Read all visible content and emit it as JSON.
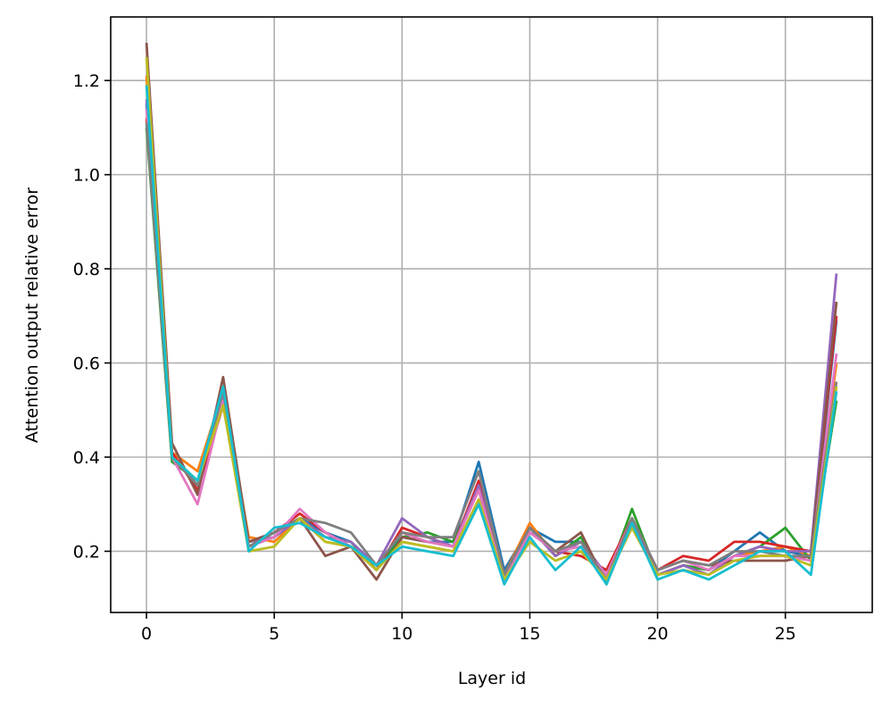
{
  "chart_data": {
    "type": "line",
    "title": "",
    "xlabel": "Layer id",
    "ylabel": "Attention output relative error",
    "xlim": [
      -1.4,
      28.4
    ],
    "ylim": [
      0.07,
      1.335
    ],
    "xticks": [
      0,
      5,
      10,
      15,
      20,
      25
    ],
    "yticks": [
      0.2,
      0.4,
      0.6,
      0.8,
      1.0,
      1.2
    ],
    "xtick_labels": [
      "0",
      "5",
      "10",
      "15",
      "20",
      "25"
    ],
    "ytick_labels": [
      "0.2",
      "0.4",
      "0.6",
      "0.8",
      "1.0",
      "1.2"
    ],
    "grid": true,
    "legend": "none",
    "x": [
      0,
      1,
      2,
      3,
      4,
      5,
      6,
      7,
      8,
      9,
      10,
      11,
      12,
      13,
      14,
      15,
      16,
      17,
      18,
      19,
      20,
      21,
      22,
      23,
      24,
      25,
      26,
      27
    ],
    "series": [
      {
        "color": "#1f77b4",
        "values": [
          1.15,
          0.4,
          0.34,
          0.52,
          0.21,
          0.23,
          0.27,
          0.24,
          0.22,
          0.17,
          0.23,
          0.22,
          0.22,
          0.39,
          0.16,
          0.25,
          0.22,
          0.22,
          0.15,
          0.26,
          0.15,
          0.17,
          0.16,
          0.2,
          0.24,
          0.2,
          0.19,
          0.69
        ]
      },
      {
        "color": "#ff7f0e",
        "values": [
          1.21,
          0.41,
          0.37,
          0.54,
          0.23,
          0.22,
          0.27,
          0.22,
          0.21,
          0.17,
          0.22,
          0.21,
          0.2,
          0.31,
          0.15,
          0.26,
          0.19,
          0.22,
          0.15,
          0.25,
          0.15,
          0.17,
          0.16,
          0.19,
          0.2,
          0.21,
          0.19,
          0.6
        ]
      },
      {
        "color": "#2ca02c",
        "values": [
          1.1,
          0.39,
          0.35,
          0.53,
          0.21,
          0.24,
          0.27,
          0.23,
          0.22,
          0.16,
          0.23,
          0.24,
          0.22,
          0.33,
          0.15,
          0.25,
          0.19,
          0.23,
          0.14,
          0.29,
          0.15,
          0.17,
          0.16,
          0.19,
          0.21,
          0.25,
          0.18,
          0.52
        ]
      },
      {
        "color": "#d62728",
        "values": [
          1.12,
          0.41,
          0.33,
          0.51,
          0.22,
          0.24,
          0.28,
          0.24,
          0.21,
          0.16,
          0.25,
          0.23,
          0.21,
          0.35,
          0.15,
          0.25,
          0.2,
          0.19,
          0.16,
          0.27,
          0.16,
          0.19,
          0.18,
          0.22,
          0.22,
          0.21,
          0.2,
          0.7
        ]
      },
      {
        "color": "#9467bd",
        "values": [
          1.16,
          0.4,
          0.34,
          0.53,
          0.22,
          0.23,
          0.27,
          0.23,
          0.22,
          0.17,
          0.27,
          0.23,
          0.21,
          0.34,
          0.15,
          0.25,
          0.19,
          0.22,
          0.15,
          0.26,
          0.15,
          0.17,
          0.15,
          0.19,
          0.21,
          0.2,
          0.2,
          0.79
        ]
      },
      {
        "color": "#8c564b",
        "values": [
          1.28,
          0.43,
          0.32,
          0.57,
          0.22,
          0.24,
          0.27,
          0.19,
          0.21,
          0.14,
          0.23,
          0.22,
          0.21,
          0.33,
          0.15,
          0.24,
          0.2,
          0.24,
          0.13,
          0.27,
          0.16,
          0.18,
          0.17,
          0.18,
          0.18,
          0.18,
          0.19,
          0.73
        ]
      },
      {
        "color": "#e377c2",
        "values": [
          1.14,
          0.4,
          0.3,
          0.52,
          0.21,
          0.23,
          0.29,
          0.24,
          0.21,
          0.17,
          0.24,
          0.22,
          0.21,
          0.33,
          0.14,
          0.24,
          0.2,
          0.21,
          0.15,
          0.27,
          0.16,
          0.18,
          0.16,
          0.19,
          0.19,
          0.19,
          0.18,
          0.62
        ]
      },
      {
        "color": "#7f7f7f",
        "values": [
          1.11,
          0.4,
          0.34,
          0.54,
          0.21,
          0.24,
          0.27,
          0.26,
          0.24,
          0.17,
          0.24,
          0.23,
          0.23,
          0.37,
          0.15,
          0.25,
          0.2,
          0.22,
          0.14,
          0.27,
          0.16,
          0.18,
          0.17,
          0.2,
          0.2,
          0.19,
          0.19,
          0.56
        ]
      },
      {
        "color": "#bcbd22",
        "values": [
          1.25,
          0.4,
          0.35,
          0.51,
          0.2,
          0.21,
          0.27,
          0.22,
          0.21,
          0.16,
          0.22,
          0.21,
          0.2,
          0.31,
          0.14,
          0.22,
          0.18,
          0.2,
          0.14,
          0.25,
          0.15,
          0.16,
          0.15,
          0.18,
          0.19,
          0.19,
          0.17,
          0.55
        ]
      },
      {
        "color": "#17becf",
        "values": [
          1.19,
          0.4,
          0.35,
          0.55,
          0.2,
          0.25,
          0.26,
          0.23,
          0.21,
          0.17,
          0.21,
          0.2,
          0.19,
          0.3,
          0.13,
          0.23,
          0.16,
          0.21,
          0.13,
          0.26,
          0.14,
          0.16,
          0.14,
          0.17,
          0.2,
          0.2,
          0.15,
          0.54
        ]
      }
    ]
  }
}
